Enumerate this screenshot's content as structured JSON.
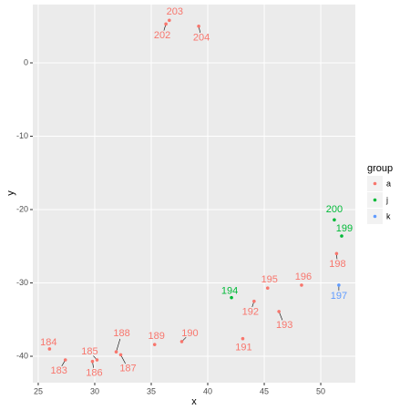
{
  "chart_data": {
    "type": "scatter",
    "x_label": "x",
    "y_label": "y",
    "legend_title": "group",
    "xlim": [
      24.52,
      53.06
    ],
    "ylim": [
      -43.6,
      7.95
    ],
    "xticks": [
      25,
      30,
      35,
      40,
      45,
      50
    ],
    "yticks": [
      -40,
      -30,
      -20,
      -10,
      0
    ],
    "grid": true,
    "legend": "right",
    "series": [
      {
        "name": "a",
        "color": "#F8766D",
        "labels": [
          "183",
          "184",
          "185",
          "186",
          "187",
          "188",
          "189",
          "190",
          "191",
          "192",
          "193",
          "195",
          "196",
          "198",
          "202",
          "203",
          "204"
        ],
        "x": [
          27.4,
          26.0,
          30.2,
          29.8,
          32.3,
          31.9,
          35.3,
          37.7,
          43.1,
          44.1,
          46.3,
          45.3,
          48.3,
          51.4,
          36.3,
          36.6,
          39.2
        ],
        "values": [
          -40.5,
          -39.0,
          -40.5,
          -40.7,
          -39.8,
          -39.4,
          -38.4,
          -38.0,
          -37.6,
          -32.5,
          -33.9,
          -30.7,
          -30.3,
          -26.0,
          5.3,
          5.8,
          5.0
        ]
      },
      {
        "name": "j",
        "color": "#00BA38",
        "labels": [
          "194",
          "199",
          "200"
        ],
        "x": [
          42.1,
          51.85,
          51.2
        ],
        "values": [
          -32.0,
          -23.6,
          -21.4
        ]
      },
      {
        "name": "k",
        "color": "#619CFF",
        "labels": [
          "197"
        ],
        "x": [
          51.6
        ],
        "values": [
          -30.3
        ]
      }
    ]
  }
}
